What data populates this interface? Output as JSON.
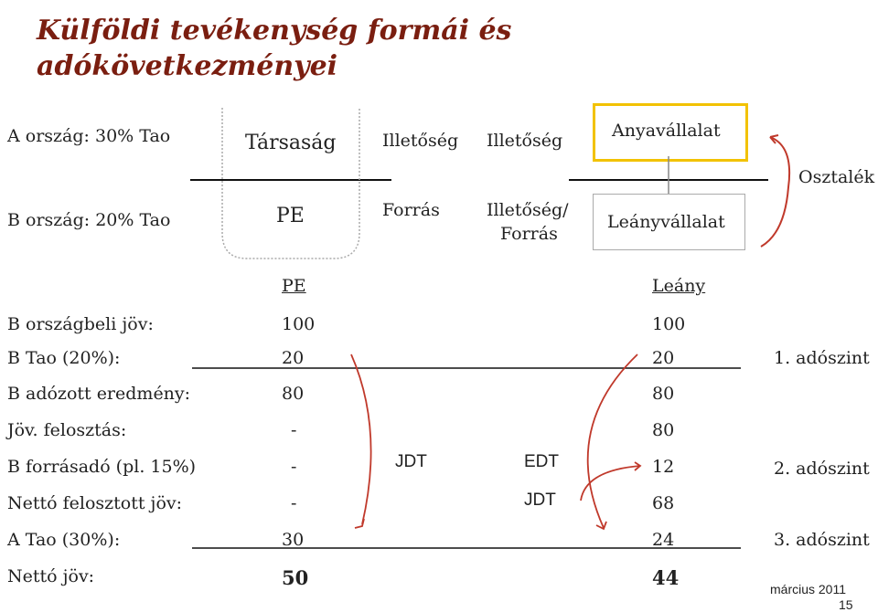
{
  "title": {
    "line1": "Külföldi tevékenység formái és",
    "line2": "adókövetkezményei"
  },
  "diagram": {
    "a_country": "A ország: 30% Tao",
    "b_country": "B ország: 20% Tao",
    "tarsasag": "Társaság",
    "pe": "PE",
    "illetoseg1": "Illetőség",
    "forras": "Forrás",
    "illetoseg2": "Illetőség",
    "illetoseg_forras_1": "Illetőség/",
    "illetoseg_forras_2": "Forrás",
    "anyavallalat": "Anyavállalat",
    "leanyvallalat": "Leányvállalat",
    "osztalek": "Osztalék"
  },
  "table": {
    "header_pe": "PE",
    "header_leany": "Leány",
    "rows": [
      {
        "label": "B országbeli jöv:",
        "pe": "100",
        "leany": "100",
        "note": ""
      },
      {
        "label": "B Tao (20%):",
        "pe": "20",
        "leany": "20",
        "note": "1. adószint"
      },
      {
        "label": "B adózott eredmény:",
        "pe": "80",
        "leany": "80",
        "note": ""
      },
      {
        "label": "Jöv. felosztás:",
        "pe": "-",
        "leany": "80",
        "note": ""
      },
      {
        "label": "B forrásadó (pl. 15%)",
        "pe": "-",
        "leany": "12",
        "note": "2. adószint"
      },
      {
        "label": "Nettó felosztott jöv:",
        "pe": "-",
        "leany": "68",
        "note": ""
      },
      {
        "label": "A Tao (30%):",
        "pe": "30",
        "leany": "24",
        "note": "3. adószint"
      },
      {
        "label": "Nettó jöv:",
        "pe": "50",
        "leany": "44",
        "note": ""
      }
    ],
    "jdt1": "JDT",
    "edt": "EDT",
    "jdt2": "JDT"
  },
  "footer": {
    "date": "március 2011",
    "page": "15"
  },
  "colors": {
    "title": "#7a1e10",
    "anya_box_border": "#f2c200",
    "leany_box_border": "#aaaaaa",
    "arrow": "#c0392b"
  }
}
